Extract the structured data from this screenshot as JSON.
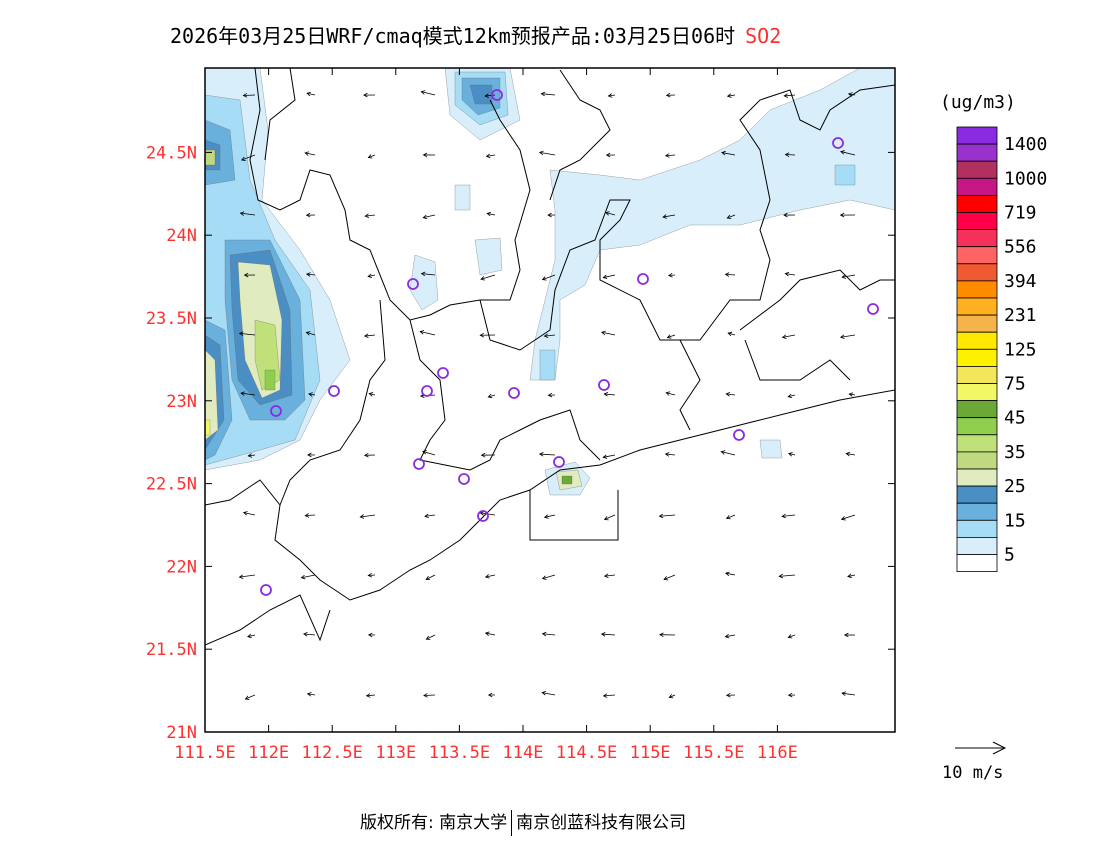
{
  "title": {
    "text": "2026年03月25日WRF/cmaq模式12km预报产品:03月25日06时",
    "species": "SO2"
  },
  "axes": {
    "lon_labels": [
      "111.5E",
      "112E",
      "112.5E",
      "113E",
      "113.5E",
      "114E",
      "114.5E",
      "115E",
      "115.5E",
      "116E"
    ],
    "lat_labels": [
      "21N",
      "21.5N",
      "22N",
      "22.5N",
      "23N",
      "23.5N",
      "24N",
      "24.5N"
    ]
  },
  "legend": {
    "unit": "(ug/m3)",
    "labels": [
      "1400",
      "1000",
      "719",
      "556",
      "394",
      "231",
      "125",
      "75",
      "45",
      "35",
      "25",
      "15",
      "5"
    ],
    "colors": [
      "#8a2be2",
      "#9932cc",
      "#b03060",
      "#c71585",
      "#ff0000",
      "#ff0048",
      "#f5305a",
      "#ff6464",
      "#f05a30",
      "#ff8c00",
      "#ffb020",
      "#f5b44a",
      "#ffe800",
      "#fff000",
      "#f2e65a",
      "#f2f766",
      "#6aa838",
      "#8fce4e",
      "#c0e07a",
      "#c0d880",
      "#e0ebc0",
      "#4a8ec4",
      "#6ab0dc",
      "#a6dcf5",
      "#d8eefa",
      "#ffffff"
    ],
    "wind_ref": "10 m/s"
  },
  "footer": {
    "left": "版权所有: 南京大学",
    "right": "南京创蓝科技有限公司"
  }
}
